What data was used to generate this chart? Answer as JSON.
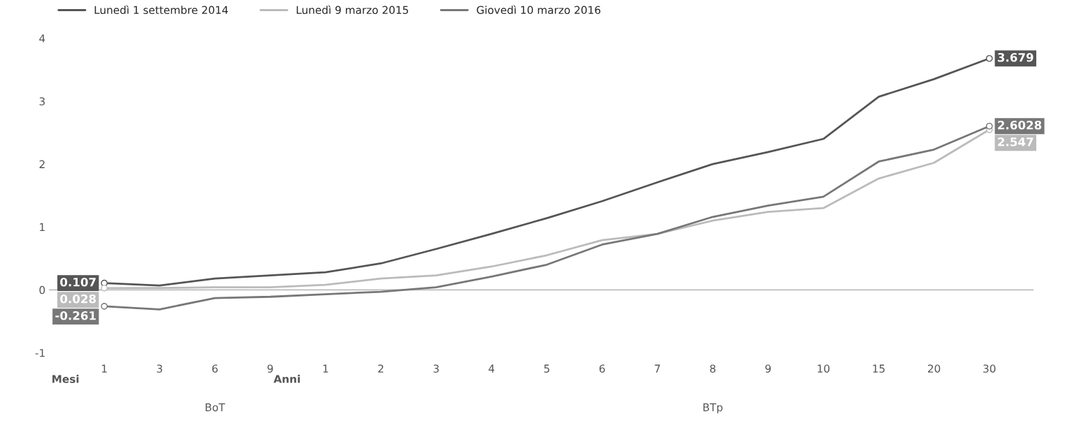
{
  "chart_data": {
    "type": "line",
    "categories": [
      "1",
      "3",
      "6",
      "9",
      "1",
      "2",
      "3",
      "4",
      "5",
      "6",
      "7",
      "8",
      "9",
      "10",
      "15",
      "20",
      "30"
    ],
    "ylim": [
      -1,
      4
    ],
    "yticks": [
      -1,
      0,
      1,
      2,
      3,
      4
    ],
    "legend": "top left",
    "ref_lines": [
      {
        "axis": "y",
        "value": 0,
        "color": "#bbbbbb"
      }
    ],
    "annotations": [
      "Mesi",
      "Anni",
      "BoT",
      "BTp"
    ],
    "series": [
      {
        "name": "Lunedì 1 settembre 2014",
        "color": "#555555",
        "values": [
          0.107,
          0.07,
          0.18,
          0.23,
          0.28,
          0.42,
          0.65,
          0.89,
          1.14,
          1.41,
          1.71,
          2.0,
          2.19,
          2.4,
          3.07,
          3.35,
          3.679
        ],
        "value_labels": [
          "0.107",
          null,
          null,
          null,
          null,
          null,
          null,
          null,
          null,
          null,
          null,
          null,
          null,
          null,
          null,
          null,
          "3.679"
        ]
      },
      {
        "name": "Lunedì 9 marzo 2015",
        "color": "#bbbbbb",
        "values": [
          0.028,
          0.03,
          0.04,
          0.04,
          0.08,
          0.18,
          0.23,
          0.37,
          0.55,
          0.79,
          0.89,
          1.1,
          1.24,
          1.3,
          1.77,
          2.02,
          2.547
        ],
        "value_labels": [
          "0.028",
          null,
          null,
          null,
          null,
          null,
          null,
          null,
          null,
          null,
          null,
          null,
          null,
          null,
          null,
          null,
          "2.547"
        ]
      },
      {
        "name": "Giovedì 10 marzo 2016",
        "color": "#777777",
        "values": [
          -0.261,
          -0.31,
          -0.13,
          -0.11,
          -0.07,
          -0.03,
          0.04,
          0.21,
          0.4,
          0.72,
          0.89,
          1.16,
          1.34,
          1.48,
          2.04,
          2.23,
          2.6028
        ],
        "value_labels": [
          "-0.261",
          null,
          null,
          null,
          null,
          null,
          null,
          null,
          null,
          null,
          null,
          null,
          null,
          null,
          null,
          null,
          "2.6028"
        ]
      }
    ]
  }
}
